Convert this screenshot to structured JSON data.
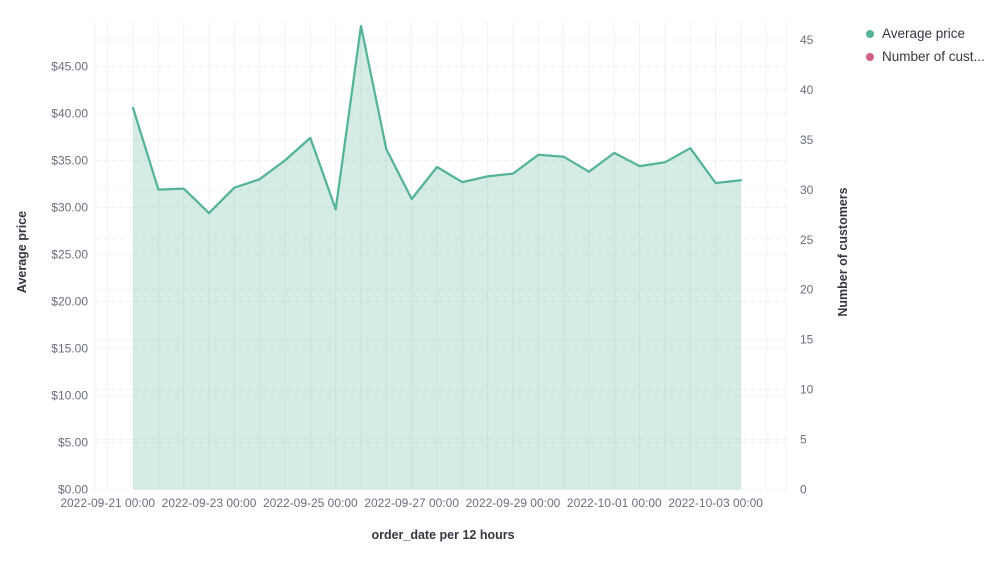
{
  "chart": {
    "legend": {
      "items": [
        {
          "label": "Average price",
          "color": "#54b399"
        },
        {
          "label": "Number of cust...",
          "color": "#d36086"
        }
      ]
    },
    "axes": {
      "left": {
        "title": "Average price",
        "tick_labels": [
          "$0.00",
          "$5.00",
          "$10.00",
          "$15.00",
          "$20.00",
          "$25.00",
          "$30.00",
          "$35.00",
          "$40.00",
          "$45.00"
        ]
      },
      "right": {
        "title": "Number of customers",
        "tick_labels": [
          "0",
          "5",
          "10",
          "15",
          "20",
          "25",
          "30",
          "35",
          "40",
          "45"
        ]
      },
      "bottom": {
        "title": "order_date per 12 hours",
        "tick_labels": [
          "2022-09-21 00:00",
          "2022-09-23 00:00",
          "2022-09-25 00:00",
          "2022-09-27 00:00",
          "2022-09-29 00:00",
          "2022-10-01 00:00",
          "2022-10-03 00:00"
        ]
      }
    }
  },
  "chart_data": {
    "type": "area",
    "title": "",
    "xlabel": "order_date per 12 hours",
    "ylabel_left": "Average price",
    "ylabel_right": "Number of customers",
    "ylim_left": [
      0,
      51
    ],
    "ylim_right": [
      0,
      48
    ],
    "y_tick_step": 5,
    "grid": true,
    "legend_position": "top-right",
    "x": [
      "2022-09-21 12:00",
      "2022-09-22 00:00",
      "2022-09-22 12:00",
      "2022-09-23 00:00",
      "2022-09-23 12:00",
      "2022-09-24 00:00",
      "2022-09-24 12:00",
      "2022-09-25 00:00",
      "2022-09-25 12:00",
      "2022-09-26 00:00",
      "2022-09-26 12:00",
      "2022-09-27 00:00",
      "2022-09-27 12:00",
      "2022-09-28 00:00",
      "2022-09-28 12:00",
      "2022-09-29 00:00",
      "2022-09-29 12:00",
      "2022-09-30 00:00",
      "2022-09-30 12:00",
      "2022-10-01 00:00",
      "2022-10-01 12:00",
      "2022-10-02 00:00",
      "2022-10-02 12:00",
      "2022-10-03 00:00",
      "2022-10-03 12:00"
    ],
    "series": [
      {
        "name": "Average price",
        "axis": "left",
        "color": "#54b399",
        "fill_opacity": 0.25,
        "values": [
          40.6,
          31.9,
          32.0,
          29.4,
          32.1,
          33.0,
          35.0,
          37.4,
          29.8,
          49.3,
          36.2,
          30.9,
          34.3,
          32.7,
          33.3,
          33.6,
          35.6,
          35.4,
          33.8,
          35.8,
          34.4,
          34.8,
          36.3,
          32.6,
          32.9
        ]
      },
      {
        "name": "Number of customers",
        "axis": "right",
        "color": "#d36086",
        "values": []
      }
    ]
  }
}
